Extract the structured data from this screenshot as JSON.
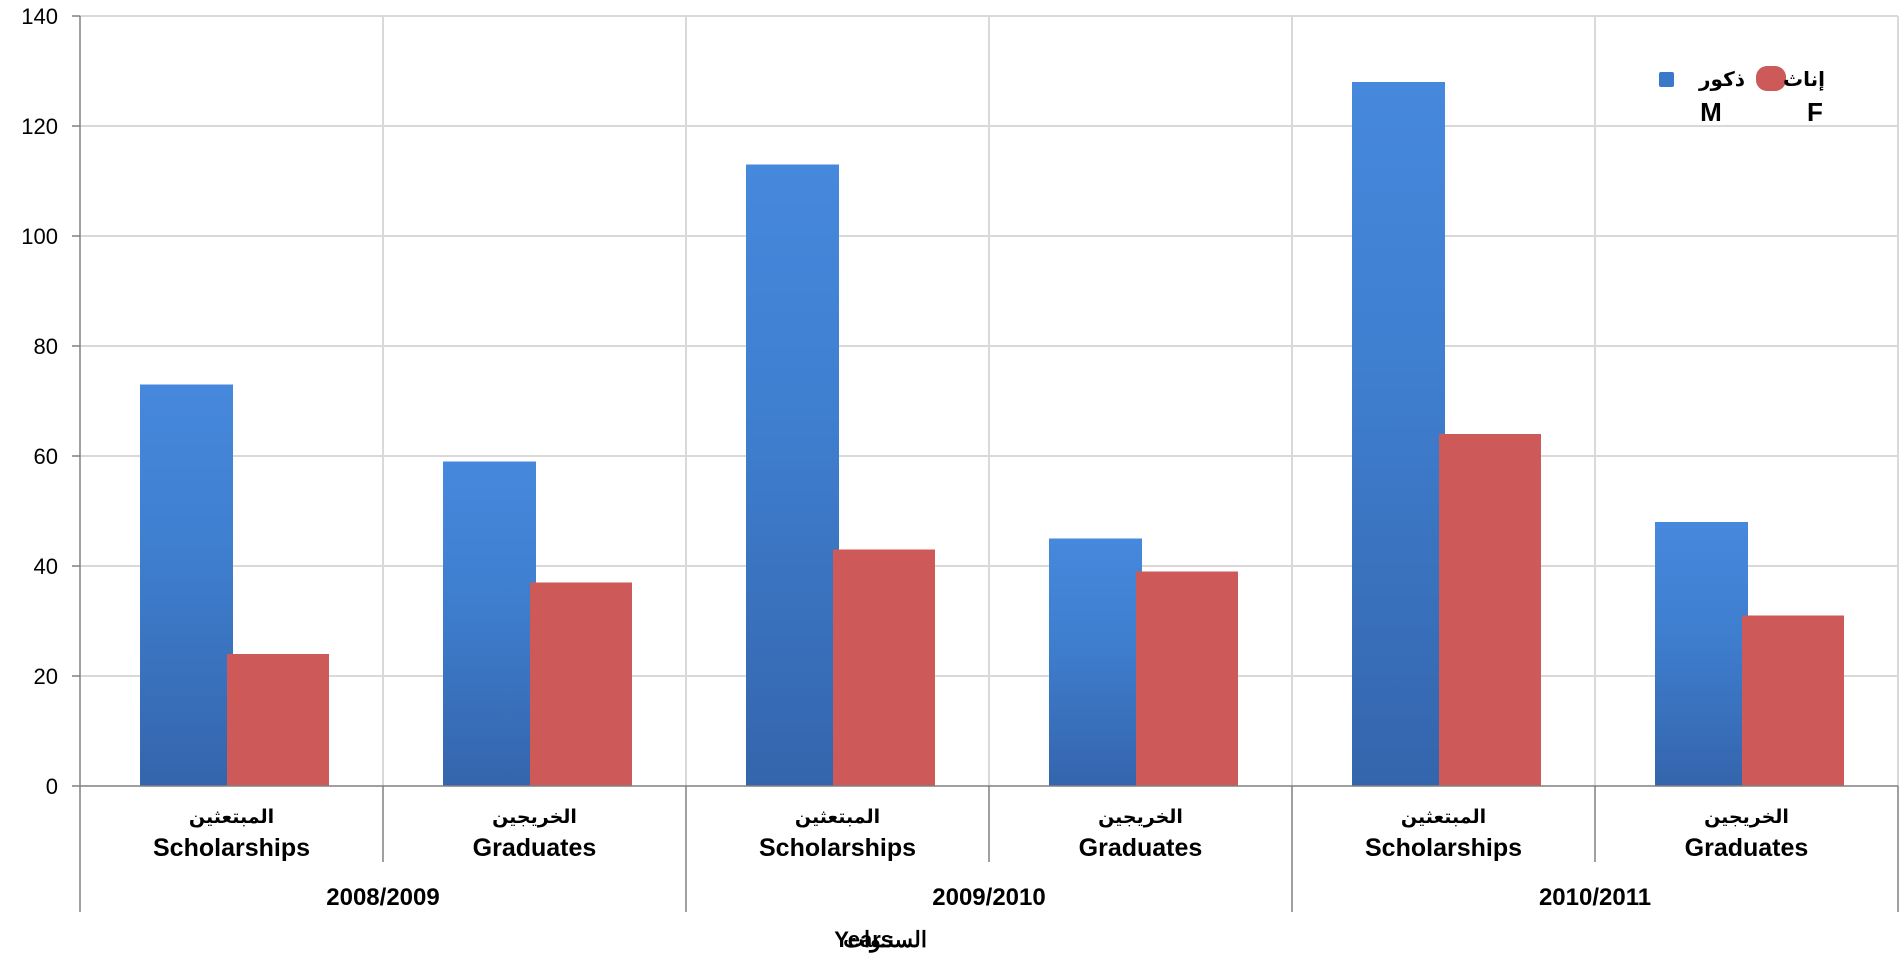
{
  "chart_data": {
    "type": "bar",
    "groups": [
      {
        "label": "2008/2009",
        "categories": [
          {
            "label_ar": "المبتعثين",
            "label_en": "Scholarships"
          },
          {
            "label_ar": "الخريجين",
            "label_en": "Graduates"
          }
        ]
      },
      {
        "label": "2009/2010",
        "categories": [
          {
            "label_ar": "المبتعثين",
            "label_en": "Scholarships"
          },
          {
            "label_ar": "الخريجين",
            "label_en": "Graduates"
          }
        ]
      },
      {
        "label": "2010/2011",
        "categories": [
          {
            "label_ar": "المبتعثين",
            "label_en": "Scholarships"
          },
          {
            "label_ar": "الخريجين",
            "label_en": "Graduates"
          }
        ]
      }
    ],
    "series": [
      {
        "name_ar": "ذكور",
        "name_en": "M",
        "color": "#3a78c9",
        "values": [
          73,
          59,
          113,
          45,
          128,
          48
        ]
      },
      {
        "name_ar": "إناث",
        "name_en": "F",
        "color": "#cd5a58",
        "values": [
          24,
          37,
          43,
          39,
          64,
          31
        ]
      }
    ],
    "y_ticks": [
      "0",
      "20",
      "40",
      "60",
      "80",
      "100",
      "120",
      "140"
    ],
    "ylim": [
      0,
      140
    ],
    "xlabel_en": "Years",
    "xlabel_ar": "السنـوات",
    "grid": true,
    "legend_position": "top-right"
  }
}
